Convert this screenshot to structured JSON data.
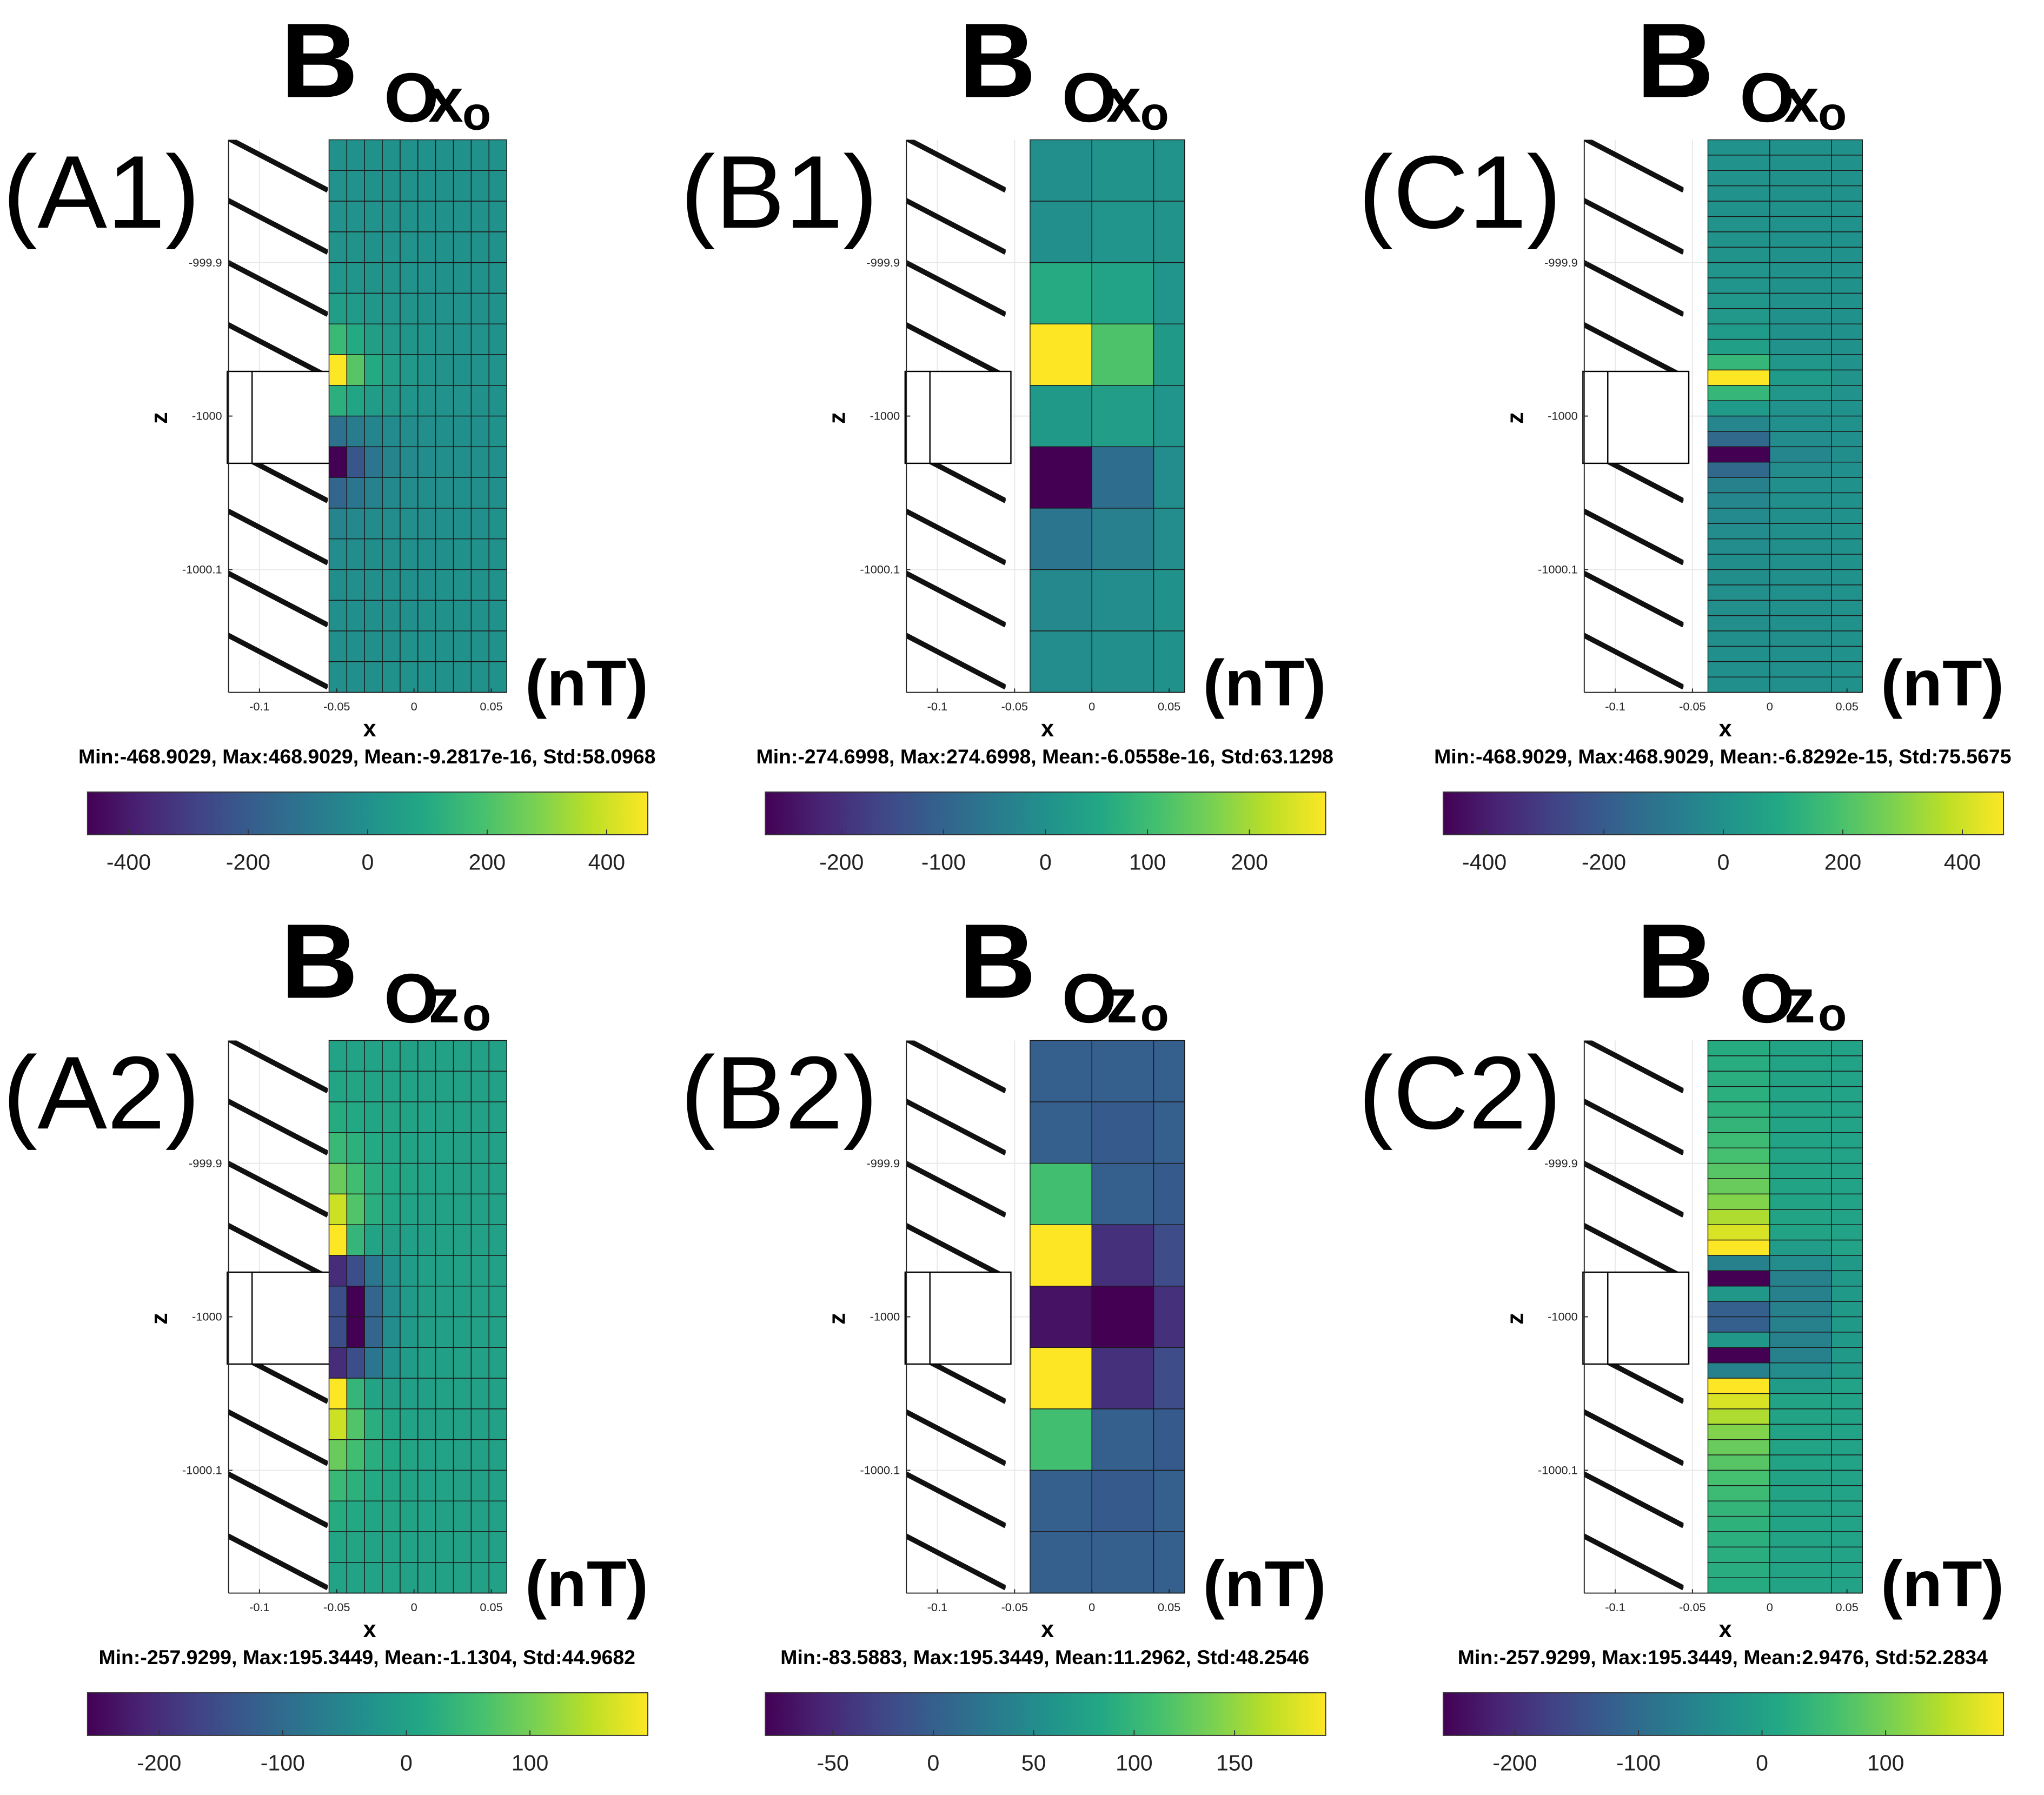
{
  "chart_data": [
    {
      "type": "heatmap",
      "label": "(A1)",
      "title_parts": [
        "B",
        "O",
        "x",
        "o"
      ],
      "x_label": "x",
      "y_label": "z",
      "unit": "(nT)",
      "stats": "Min:-468.9029, Max:468.9029, Mean:-9.2817e-16, Std:58.0968",
      "xlim": [
        -0.12,
        0.06
      ],
      "ylim": [
        -1000.18,
        -999.82
      ],
      "xticks": [
        -0.1,
        -0.05,
        0,
        0.05
      ],
      "yticks": [
        -999.9,
        -1000,
        -1000.1
      ],
      "grid": true,
      "colormap": "viridis",
      "clim": [
        -468.9029,
        468.9029
      ],
      "cticks": [
        -400,
        -200,
        0,
        200,
        400
      ],
      "x_edges": [
        -0.055,
        -0.0435,
        -0.032,
        -0.0205,
        -0.009,
        0.0025,
        0.014,
        0.0255,
        0.037,
        0.0485,
        0.06
      ],
      "y_edges": [
        -999.82,
        -999.84,
        -999.86,
        -999.88,
        -999.9,
        -999.92,
        -999.94,
        -999.96,
        -999.98,
        -1000,
        -1000.02,
        -1000.04,
        -1000.06,
        -1000.08,
        -1000.1,
        -1000.12,
        -1000.14,
        -1000.16,
        -1000.18
      ],
      "z": [
        [
          2,
          2,
          2,
          1,
          1,
          1,
          1,
          0,
          0,
          0
        ],
        [
          3,
          3,
          2,
          2,
          1,
          1,
          1,
          1,
          0,
          0
        ],
        [
          5,
          4,
          3,
          2,
          2,
          1,
          1,
          1,
          1,
          0
        ],
        [
          10,
          8,
          6,
          4,
          3,
          2,
          1,
          1,
          1,
          1
        ],
        [
          20,
          15,
          10,
          7,
          5,
          3,
          2,
          1,
          1,
          1
        ],
        [
          50,
          35,
          22,
          14,
          9,
          6,
          4,
          3,
          2,
          1
        ],
        [
          160,
          100,
          55,
          30,
          18,
          11,
          7,
          5,
          3,
          2
        ],
        [
          468.9029,
          220,
          100,
          50,
          27,
          15,
          9,
          6,
          4,
          3
        ],
        [
          120,
          80,
          45,
          25,
          14,
          8,
          5,
          3,
          2,
          1
        ],
        [
          -120,
          -80,
          -45,
          -25,
          -14,
          -8,
          -5,
          -3,
          -2,
          -1
        ],
        [
          -468.9029,
          -220,
          -100,
          -50,
          -27,
          -15,
          -9,
          -6,
          -4,
          -3
        ],
        [
          -160,
          -100,
          -55,
          -30,
          -18,
          -11,
          -7,
          -5,
          -3,
          -2
        ],
        [
          -50,
          -35,
          -22,
          -14,
          -9,
          -6,
          -4,
          -3,
          -2,
          -1
        ],
        [
          -20,
          -15,
          -10,
          -7,
          -5,
          -3,
          -2,
          -1,
          -1,
          -1
        ],
        [
          -10,
          -8,
          -6,
          -4,
          -3,
          -2,
          -1,
          -1,
          -1,
          -1
        ],
        [
          -5,
          -4,
          -3,
          -2,
          -2,
          -1,
          -1,
          -1,
          -1,
          0
        ],
        [
          -3,
          -3,
          -2,
          -2,
          -1,
          -1,
          -1,
          -1,
          0,
          0
        ],
        [
          -2,
          -2,
          -2,
          -1,
          -1,
          -1,
          -1,
          0,
          0,
          0
        ]
      ]
    },
    {
      "type": "heatmap",
      "label": "(B1)",
      "title_parts": [
        "B",
        "O",
        "x",
        "o"
      ],
      "x_label": "x",
      "y_label": "z",
      "unit": "(nT)",
      "stats": "Min:-274.6998, Max:274.6998, Mean:-6.0558e-16, Std:63.1298",
      "xlim": [
        -0.12,
        0.06
      ],
      "ylim": [
        -1000.18,
        -999.82
      ],
      "xticks": [
        -0.1,
        -0.05,
        0,
        0.05
      ],
      "yticks": [
        -999.9,
        -1000,
        -1000.1
      ],
      "grid": true,
      "colormap": "viridis",
      "clim": [
        -274.6998,
        274.6998
      ],
      "cticks": [
        -200,
        -100,
        0,
        100,
        200
      ],
      "x_edges": [
        -0.04,
        0,
        0.04,
        0.06
      ],
      "y_edges": [
        -999.82,
        -999.86,
        -999.9,
        -999.94,
        -999.98,
        -1000.02,
        -1000.06,
        -1000.1,
        -1000.14,
        -1000.18
      ],
      "z": [
        [
          -5,
          5,
          5
        ],
        [
          -5,
          10,
          5
        ],
        [
          60,
          40,
          10
        ],
        [
          274.6998,
          120,
          20
        ],
        [
          20,
          30,
          10
        ],
        [
          -274.6998,
          -80,
          -10
        ],
        [
          -60,
          -40,
          -10
        ],
        [
          -20,
          -10,
          0
        ],
        [
          -10,
          -5,
          0
        ]
      ]
    },
    {
      "type": "heatmap",
      "label": "(C1)",
      "title_parts": [
        "B",
        "O",
        "x",
        "o"
      ],
      "x_label": "x",
      "y_label": "z",
      "unit": "(nT)",
      "stats": "Min:-468.9029, Max:468.9029, Mean:-6.8292e-15, Std:75.5675",
      "xlim": [
        -0.12,
        0.06
      ],
      "ylim": [
        -1000.18,
        -999.82
      ],
      "xticks": [
        -0.1,
        -0.05,
        0,
        0.05
      ],
      "yticks": [
        -999.9,
        -1000,
        -1000.1
      ],
      "grid": true,
      "colormap": "viridis",
      "clim": [
        -468.9029,
        468.9029
      ],
      "cticks": [
        -400,
        -200,
        0,
        200,
        400
      ],
      "x_edges": [
        -0.04,
        0,
        0.04,
        0.06
      ],
      "y_edges": [
        -999.82,
        -999.83,
        -999.84,
        -999.85,
        -999.86,
        -999.87,
        -999.88,
        -999.89,
        -999.9,
        -999.91,
        -999.92,
        -999.93,
        -999.94,
        -999.95,
        -999.96,
        -999.97,
        -999.98,
        -999.99,
        -1000,
        -1000.01,
        -1000.02,
        -1000.03,
        -1000.04,
        -1000.05,
        -1000.06,
        -1000.07,
        -1000.08,
        -1000.09,
        -1000.1,
        -1000.11,
        -1000.12,
        -1000.13,
        -1000.14,
        -1000.15,
        -1000.16,
        -1000.17,
        -1000.18
      ],
      "z": [
        [
          4,
          2,
          1
        ],
        [
          4,
          2,
          1
        ],
        [
          5,
          2,
          1
        ],
        [
          5,
          2,
          1
        ],
        [
          6,
          2,
          1
        ],
        [
          7,
          2,
          1
        ],
        [
          8,
          2,
          1
        ],
        [
          10,
          2,
          1
        ],
        [
          12,
          2,
          1
        ],
        [
          15,
          2,
          1
        ],
        [
          20,
          2,
          1
        ],
        [
          28,
          2,
          1
        ],
        [
          40,
          2,
          1
        ],
        [
          60,
          5,
          1
        ],
        [
          150,
          20,
          3
        ],
        [
          468.9029,
          40,
          10
        ],
        [
          150,
          20,
          3
        ],
        [
          40,
          5,
          1
        ],
        [
          -40,
          -5,
          -1
        ],
        [
          -150,
          -20,
          -3
        ],
        [
          -468.9029,
          -40,
          -10
        ],
        [
          -150,
          -20,
          -3
        ],
        [
          -60,
          -5,
          -1
        ],
        [
          -40,
          -2,
          -1
        ],
        [
          -28,
          -2,
          -1
        ],
        [
          -20,
          -2,
          -1
        ],
        [
          -15,
          -2,
          -1
        ],
        [
          -12,
          -2,
          -1
        ],
        [
          -10,
          -2,
          -1
        ],
        [
          -8,
          -2,
          -1
        ],
        [
          -7,
          -2,
          -1
        ],
        [
          -6,
          -2,
          -1
        ],
        [
          -5,
          -2,
          -1
        ],
        [
          -5,
          -2,
          -1
        ],
        [
          -4,
          -2,
          -1
        ],
        [
          -4,
          -2,
          -1
        ]
      ]
    },
    {
      "type": "heatmap",
      "label": "(A2)",
      "title_parts": [
        "B",
        "O",
        "z",
        "o"
      ],
      "x_label": "x",
      "y_label": "z",
      "unit": "(nT)",
      "stats": "Min:-257.9299, Max:195.3449, Mean:-1.1304, Std:44.9682",
      "xlim": [
        -0.12,
        0.06
      ],
      "ylim": [
        -1000.18,
        -999.82
      ],
      "xticks": [
        -0.1,
        -0.05,
        0,
        0.05
      ],
      "yticks": [
        -999.9,
        -1000,
        -1000.1
      ],
      "grid": true,
      "colormap": "viridis",
      "clim": [
        -257.9299,
        195.3449
      ],
      "cticks": [
        -200,
        -100,
        0,
        100
      ],
      "x_edges": [
        -0.055,
        -0.0435,
        -0.032,
        -0.0205,
        -0.009,
        0.0025,
        0.014,
        0.0255,
        0.037,
        0.0485,
        0.06
      ],
      "y_edges": [
        -999.82,
        -999.84,
        -999.86,
        -999.88,
        -999.9,
        -999.92,
        -999.94,
        -999.96,
        -999.98,
        -1000,
        -1000.02,
        -1000.04,
        -1000.06,
        -1000.08,
        -1000.1,
        -1000.12,
        -1000.14,
        -1000.16,
        -1000.18
      ],
      "z": [
        [
          3,
          3,
          2,
          2,
          1,
          1,
          1,
          0,
          0,
          0
        ],
        [
          8,
          6,
          4,
          3,
          2,
          1,
          1,
          1,
          0,
          0
        ],
        [
          20,
          14,
          9,
          6,
          4,
          2,
          1,
          1,
          1,
          0
        ],
        [
          45,
          30,
          16,
          9,
          5,
          3,
          2,
          1,
          1,
          0
        ],
        [
          90,
          55,
          25,
          12,
          6,
          3,
          2,
          1,
          1,
          0
        ],
        [
          160,
          70,
          25,
          8,
          3,
          1,
          0,
          0,
          0,
          0
        ],
        [
          195.3449,
          40,
          5,
          -5,
          -3,
          -1,
          0,
          0,
          0,
          0
        ],
        [
          -200,
          -150,
          -80,
          -30,
          -10,
          -4,
          -1,
          0,
          0,
          0
        ],
        [
          -150,
          -257.9299,
          -110,
          -40,
          -14,
          -5,
          -2,
          -1,
          0,
          0
        ],
        [
          -150,
          -257.9299,
          -110,
          -40,
          -14,
          -5,
          -2,
          -1,
          0,
          0
        ],
        [
          -200,
          -150,
          -80,
          -30,
          -10,
          -4,
          -1,
          0,
          0,
          0
        ],
        [
          195.3449,
          40,
          5,
          -5,
          -3,
          -1,
          0,
          0,
          0,
          0
        ],
        [
          160,
          70,
          25,
          8,
          3,
          1,
          0,
          0,
          0,
          0
        ],
        [
          90,
          55,
          25,
          12,
          6,
          3,
          2,
          1,
          1,
          0
        ],
        [
          45,
          30,
          16,
          9,
          5,
          3,
          2,
          1,
          1,
          0
        ],
        [
          20,
          14,
          9,
          6,
          4,
          2,
          1,
          1,
          1,
          0
        ],
        [
          8,
          6,
          4,
          3,
          2,
          1,
          1,
          1,
          0,
          0
        ],
        [
          3,
          3,
          2,
          2,
          1,
          1,
          1,
          0,
          0,
          0
        ]
      ]
    },
    {
      "type": "heatmap",
      "label": "(B2)",
      "title_parts": [
        "B",
        "O",
        "z",
        "o"
      ],
      "x_label": "x",
      "y_label": "z",
      "unit": "(nT)",
      "stats": "Min:-83.5883, Max:195.3449, Mean:11.2962, Std:48.2546",
      "xlim": [
        -0.12,
        0.06
      ],
      "ylim": [
        -1000.18,
        -999.82
      ],
      "xticks": [
        -0.1,
        -0.05,
        0,
        0.05
      ],
      "yticks": [
        -999.9,
        -1000,
        -1000.1
      ],
      "grid": true,
      "colormap": "viridis",
      "clim": [
        -83.5883,
        195.3449
      ],
      "cticks": [
        -50,
        0,
        50,
        100,
        150
      ],
      "x_edges": [
        -0.04,
        0,
        0.04,
        0.06
      ],
      "y_edges": [
        -999.82,
        -999.86,
        -999.9,
        -999.94,
        -999.98,
        -1000.02,
        -1000.06,
        -1000.1,
        -1000.14,
        -1000.18
      ],
      "z": [
        [
          0,
          0,
          0
        ],
        [
          0,
          -5,
          0
        ],
        [
          110,
          0,
          -5
        ],
        [
          195.3449,
          -45,
          -20
        ],
        [
          -70,
          -83.5883,
          -45
        ],
        [
          195.3449,
          -45,
          -20
        ],
        [
          110,
          0,
          -5
        ],
        [
          0,
          -5,
          0
        ],
        [
          0,
          0,
          0
        ]
      ]
    },
    {
      "type": "heatmap",
      "label": "(C2)",
      "title_parts": [
        "B",
        "O",
        "z",
        "o"
      ],
      "x_label": "x",
      "y_label": "z",
      "unit": "(nT)",
      "stats": "Min:-257.9299, Max:195.3449, Mean:2.9476, Std:52.2834",
      "xlim": [
        -0.12,
        0.06
      ],
      "ylim": [
        -1000.18,
        -999.82
      ],
      "xticks": [
        -0.1,
        -0.05,
        0,
        0.05
      ],
      "yticks": [
        -999.9,
        -1000,
        -1000.1
      ],
      "grid": true,
      "colormap": "viridis",
      "clim": [
        -257.9299,
        195.3449
      ],
      "cticks": [
        -200,
        -100,
        0,
        100
      ],
      "x_edges": [
        -0.04,
        0,
        0.04,
        0.06
      ],
      "y_edges": [
        -999.82,
        -999.83,
        -999.84,
        -999.85,
        -999.86,
        -999.87,
        -999.88,
        -999.89,
        -999.9,
        -999.91,
        -999.92,
        -999.93,
        -999.94,
        -999.95,
        -999.96,
        -999.97,
        -999.98,
        -999.99,
        -1000,
        -1000.01,
        -1000.02,
        -1000.03,
        -1000.04,
        -1000.05,
        -1000.06,
        -1000.07,
        -1000.08,
        -1000.09,
        -1000.1,
        -1000.11,
        -1000.12,
        -1000.13,
        -1000.14,
        -1000.15,
        -1000.16,
        -1000.17,
        -1000.18
      ],
      "z": [
        [
          20,
          5,
          2
        ],
        [
          22,
          5,
          2
        ],
        [
          25,
          5,
          2
        ],
        [
          28,
          5,
          2
        ],
        [
          32,
          5,
          2
        ],
        [
          38,
          5,
          2
        ],
        [
          50,
          5,
          2
        ],
        [
          60,
          5,
          2
        ],
        [
          75,
          5,
          2
        ],
        [
          90,
          5,
          2
        ],
        [
          110,
          5,
          2
        ],
        [
          140,
          5,
          2
        ],
        [
          170,
          5,
          2
        ],
        [
          195.3449,
          -10,
          2
        ],
        [
          -60,
          -40,
          -15
        ],
        [
          -257.9299,
          -60,
          -15
        ],
        [
          -20,
          -60,
          -15
        ],
        [
          -120,
          -60,
          -15
        ],
        [
          -120,
          -60,
          -15
        ],
        [
          -20,
          -60,
          -15
        ],
        [
          -257.9299,
          -60,
          -15
        ],
        [
          -60,
          -40,
          -15
        ],
        [
          195.3449,
          -10,
          2
        ],
        [
          170,
          5,
          2
        ],
        [
          140,
          5,
          2
        ],
        [
          110,
          5,
          2
        ],
        [
          90,
          5,
          2
        ],
        [
          75,
          5,
          2
        ],
        [
          60,
          5,
          2
        ],
        [
          50,
          5,
          2
        ],
        [
          38,
          5,
          2
        ],
        [
          32,
          5,
          2
        ],
        [
          28,
          5,
          2
        ],
        [
          25,
          5,
          2
        ],
        [
          22,
          5,
          2
        ],
        [
          20,
          5,
          2
        ]
      ]
    }
  ]
}
